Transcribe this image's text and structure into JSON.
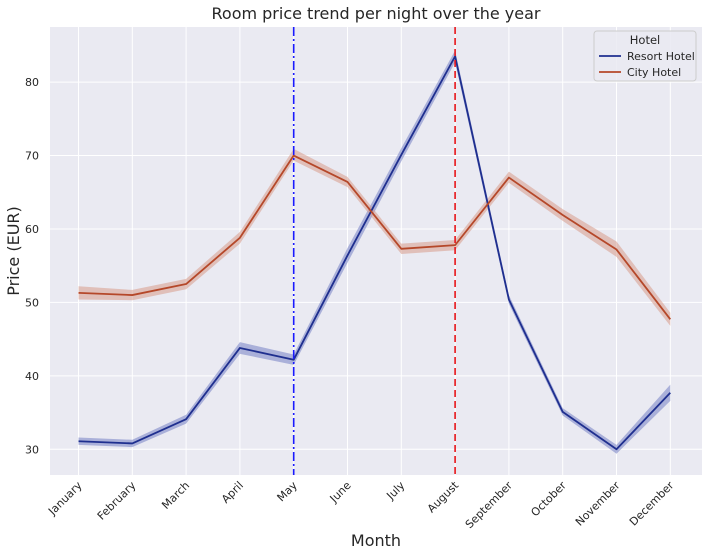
{
  "chart_data": {
    "type": "line",
    "title": "Room price trend per night over the year",
    "xlabel": "Month",
    "ylabel": "Price (EUR)",
    "categories": [
      "January",
      "February",
      "March",
      "April",
      "May",
      "June",
      "July",
      "August",
      "September",
      "October",
      "November",
      "December"
    ],
    "ylim": [
      26.5,
      87.5
    ],
    "yticks": [
      30,
      40,
      50,
      60,
      70,
      80
    ],
    "grid": true,
    "legend": {
      "title": "Hotel",
      "placement": "top-right"
    },
    "series": [
      {
        "name": "Resort Hotel",
        "color": "#1f2f8f",
        "band_color": "#7480c4",
        "values": [
          31.1,
          30.8,
          34.1,
          43.8,
          42.2,
          56.4,
          70.1,
          83.5,
          50.4,
          35.1,
          30.0,
          37.7
        ],
        "ci_low": [
          30.6,
          30.3,
          33.5,
          43.0,
          41.5,
          55.4,
          69.2,
          82.7,
          49.8,
          34.6,
          29.4,
          36.6
        ],
        "ci_high": [
          31.6,
          31.3,
          34.7,
          44.6,
          42.9,
          57.4,
          71.0,
          84.3,
          51.0,
          35.6,
          30.6,
          38.8
        ]
      },
      {
        "name": "City Hotel",
        "color": "#b5482a",
        "band_color": "#d79a8a",
        "values": [
          51.3,
          51.0,
          52.5,
          58.8,
          70.0,
          66.4,
          57.3,
          57.8,
          67.0,
          61.9,
          57.2,
          47.7
        ],
        "ci_low": [
          50.4,
          50.3,
          51.8,
          58.0,
          69.3,
          65.7,
          56.6,
          57.1,
          66.3,
          61.1,
          56.2,
          46.8
        ],
        "ci_high": [
          52.2,
          51.7,
          53.2,
          59.6,
          70.9,
          67.1,
          58.0,
          58.5,
          67.8,
          62.7,
          58.3,
          48.6
        ]
      }
    ],
    "reference_lines": [
      {
        "category": "May",
        "style": "dashdot",
        "color": "#1a1aff"
      },
      {
        "category": "August",
        "style": "dashed",
        "color": "#e8161b"
      }
    ]
  },
  "style": {
    "plot_bg": "#eaeaf2",
    "grid_color": "#ffffff"
  }
}
